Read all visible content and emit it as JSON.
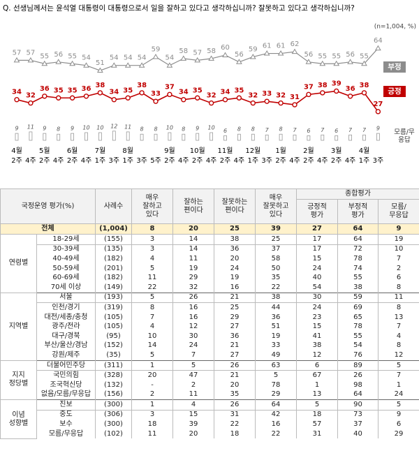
{
  "chart_data": {
    "type": "line",
    "title": "Q. 선생님께서는 윤석열 대통령이 대통령으로서 일을 잘하고 있다고 생각하십니까? 잘못하고 있다고 생각하십니까?",
    "note": "(n=1,004, %)",
    "months": [
      "4월",
      null,
      "5월",
      null,
      "6월",
      null,
      "7월",
      null,
      "8월",
      null,
      null,
      "9월",
      null,
      "10월",
      null,
      "11월",
      null,
      "12월",
      null,
      "1월",
      null,
      "2월",
      null,
      "3월",
      null,
      "4월",
      null
    ],
    "categories": [
      "2주",
      "4주",
      "2주",
      "4주",
      "2주",
      "4주",
      "1주",
      "3주",
      "1주",
      "3주",
      "5주",
      "2주",
      "4주",
      "2주",
      "4주",
      "2주",
      "4주",
      "1주",
      "3주",
      "2주",
      "4주",
      "2주",
      "4주",
      "2주",
      "4주",
      "1주",
      "3주"
    ],
    "series": [
      {
        "name": "부정",
        "color": "#8c8c8c",
        "values": [
          57,
          57,
          55,
          56,
          55,
          54,
          51,
          54,
          54,
          54,
          59,
          54,
          58,
          57,
          58,
          60,
          56,
          59,
          61,
          61,
          62,
          56,
          55,
          55,
          56,
          55,
          64
        ]
      },
      {
        "name": "긍정",
        "color": "#c00000",
        "values": [
          34,
          32,
          36,
          35,
          35,
          36,
          38,
          34,
          35,
          38,
          33,
          37,
          34,
          35,
          32,
          34,
          35,
          32,
          33,
          32,
          31,
          37,
          38,
          39,
          36,
          38,
          27
        ]
      },
      {
        "name": "모름/무응답",
        "color": "#999999",
        "values": [
          9,
          11,
          9,
          8,
          9,
          10,
          10,
          12,
          11,
          8,
          8,
          10,
          8,
          9,
          10,
          6,
          8,
          8,
          7,
          8,
          7,
          6,
          7,
          6,
          7,
          7,
          9
        ]
      }
    ]
  },
  "table": {
    "columns": [
      "국정운영 평가(%)",
      "사례수",
      "매우\n잘하고\n있다",
      "잘하는\n편이다",
      "잘못하는\n편이다",
      "매우\n잘못하고\n있다"
    ],
    "summary_header": "종합평가",
    "summary_columns": [
      "긍정적\n평가",
      "부정적\n평가",
      "모름/\n무응답"
    ],
    "total": {
      "label": "전체",
      "n": "(1,004)",
      "values": [
        8,
        20,
        25,
        39,
        27,
        64,
        9
      ]
    },
    "groups": [
      {
        "name": "연령별",
        "rows": [
          {
            "label": "18-29세",
            "n": "(155)",
            "values": [
              3,
              14,
              38,
              25,
              17,
              64,
              19
            ]
          },
          {
            "label": "30-39세",
            "n": "(135)",
            "values": [
              3,
              14,
              36,
              37,
              17,
              72,
              10
            ]
          },
          {
            "label": "40-49세",
            "n": "(182)",
            "values": [
              4,
              11,
              20,
              58,
              15,
              78,
              7
            ]
          },
          {
            "label": "50-59세",
            "n": "(201)",
            "values": [
              5,
              19,
              24,
              50,
              24,
              74,
              2
            ]
          },
          {
            "label": "60-69세",
            "n": "(182)",
            "values": [
              11,
              29,
              19,
              35,
              40,
              55,
              6
            ]
          },
          {
            "label": "70세 이상",
            "n": "(149)",
            "values": [
              22,
              32,
              16,
              22,
              54,
              38,
              8
            ]
          }
        ]
      },
      {
        "name": "지역별",
        "rows": [
          {
            "label": "서울",
            "n": "(193)",
            "values": [
              5,
              26,
              21,
              38,
              30,
              59,
              11
            ]
          },
          {
            "label": "인천/경기",
            "n": "(319)",
            "values": [
              8,
              16,
              25,
              44,
              24,
              69,
              8
            ]
          },
          {
            "label": "대전/세종/충청",
            "n": "(105)",
            "values": [
              7,
              16,
              29,
              36,
              23,
              65,
              13
            ]
          },
          {
            "label": "광주/전라",
            "n": "(105)",
            "values": [
              4,
              12,
              27,
              51,
              15,
              78,
              7
            ]
          },
          {
            "label": "대구/경북",
            "n": "(95)",
            "values": [
              10,
              30,
              36,
              19,
              41,
              55,
              4
            ]
          },
          {
            "label": "부산/울산/경남",
            "n": "(152)",
            "values": [
              14,
              24,
              21,
              33,
              38,
              54,
              8
            ]
          },
          {
            "label": "강원/제주",
            "n": "(35)",
            "values": [
              5,
              7,
              27,
              49,
              12,
              76,
              12
            ]
          }
        ]
      },
      {
        "name": "지지\n정당별",
        "rows": [
          {
            "label": "더불어민주당",
            "n": "(311)",
            "values": [
              1,
              5,
              26,
              63,
              6,
              89,
              5
            ]
          },
          {
            "label": "국민의힘",
            "n": "(328)",
            "values": [
              20,
              47,
              21,
              5,
              67,
              26,
              7
            ]
          },
          {
            "label": "조국혁신당",
            "n": "(132)",
            "values": [
              "-",
              2,
              20,
              78,
              1,
              98,
              1
            ]
          },
          {
            "label": "없음/모름/무응답",
            "n": "(156)",
            "values": [
              2,
              11,
              35,
              29,
              13,
              64,
              24
            ]
          }
        ]
      },
      {
        "name": "이념\n성향별",
        "rows": [
          {
            "label": "진보",
            "n": "(300)",
            "values": [
              1,
              4,
              26,
              64,
              5,
              90,
              5
            ]
          },
          {
            "label": "중도",
            "n": "(306)",
            "values": [
              3,
              15,
              31,
              42,
              18,
              73,
              9
            ]
          },
          {
            "label": "보수",
            "n": "(300)",
            "values": [
              18,
              39,
              22,
              16,
              57,
              37,
              6
            ]
          },
          {
            "label": "모름/무응답",
            "n": "(102)",
            "values": [
              11,
              20,
              18,
              22,
              31,
              40,
              29
            ]
          }
        ]
      }
    ]
  }
}
